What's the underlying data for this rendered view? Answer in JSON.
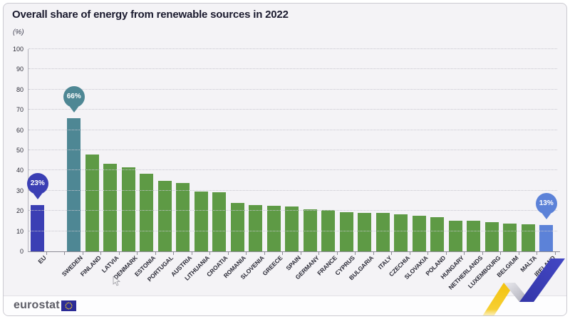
{
  "header": {
    "title": "Overall share of energy from renewable sources in 2022",
    "unit_label": "(%)"
  },
  "chart_data": {
    "type": "bar",
    "title": "Overall share of energy from renewable sources in 2022",
    "xlabel": "",
    "ylabel": "(%)",
    "ylim": [
      0,
      100
    ],
    "ytick_interval": 10,
    "yticks": [
      0,
      10,
      20,
      30,
      40,
      50,
      60,
      70,
      80,
      90,
      100
    ],
    "grid": "horizontal-dotted",
    "legend": "none",
    "bars": [
      {
        "label": "EU",
        "value": 23.0,
        "role": "eu",
        "callout": "23%",
        "gap_after": true
      },
      {
        "label": "SWEDEN",
        "value": 66.0,
        "role": "max",
        "callout": "66%"
      },
      {
        "label": "FINLAND",
        "value": 47.9,
        "role": "member"
      },
      {
        "label": "LATVIA",
        "value": 43.3,
        "role": "member"
      },
      {
        "label": "DENMARK",
        "value": 41.6,
        "role": "member"
      },
      {
        "label": "ESTONIA",
        "value": 38.5,
        "role": "member"
      },
      {
        "label": "PORTUGAL",
        "value": 34.7,
        "role": "member"
      },
      {
        "label": "AUSTRIA",
        "value": 33.8,
        "role": "member"
      },
      {
        "label": "LITHUANIA",
        "value": 29.6,
        "role": "member"
      },
      {
        "label": "CROATIA",
        "value": 29.4,
        "role": "member"
      },
      {
        "label": "ROMANIA",
        "value": 24.1,
        "role": "member"
      },
      {
        "label": "SLOVENIA",
        "value": 22.9,
        "role": "member"
      },
      {
        "label": "GREECE",
        "value": 22.7,
        "role": "member"
      },
      {
        "label": "SPAIN",
        "value": 22.1,
        "role": "member"
      },
      {
        "label": "GERMANY",
        "value": 20.8,
        "role": "member"
      },
      {
        "label": "FRANCE",
        "value": 20.3,
        "role": "member"
      },
      {
        "label": "CYPRUS",
        "value": 19.4,
        "role": "member"
      },
      {
        "label": "BULGARIA",
        "value": 19.1,
        "role": "member"
      },
      {
        "label": "ITALY",
        "value": 19.1,
        "role": "member"
      },
      {
        "label": "CZECHIA",
        "value": 18.2,
        "role": "member"
      },
      {
        "label": "SLOVAKIA",
        "value": 17.5,
        "role": "member"
      },
      {
        "label": "POLAND",
        "value": 16.9,
        "role": "member"
      },
      {
        "label": "HUNGARY",
        "value": 15.2,
        "role": "member"
      },
      {
        "label": "NETHERLANDS",
        "value": 15.0,
        "role": "member"
      },
      {
        "label": "LUXEMBOURG",
        "value": 14.4,
        "role": "member"
      },
      {
        "label": "BELGIUM",
        "value": 13.8,
        "role": "member"
      },
      {
        "label": "MALTA",
        "value": 13.4,
        "role": "member"
      },
      {
        "label": "IRELAND",
        "value": 13.1,
        "role": "min",
        "callout": "13%"
      }
    ],
    "colors": {
      "eu": "#3b3fb4",
      "member": "#5e9a45",
      "max": "#4e8794",
      "min": "#5c82d8"
    }
  },
  "footer": {
    "brand": "eurostat"
  },
  "decor": {
    "ribbon_yellow": "#f3c20d",
    "ribbon_gray": "#a9a9b4",
    "ribbon_blue": "#3b3fb5",
    "flag_blue": "#2b2b97",
    "flag_star": "#ffd617"
  }
}
